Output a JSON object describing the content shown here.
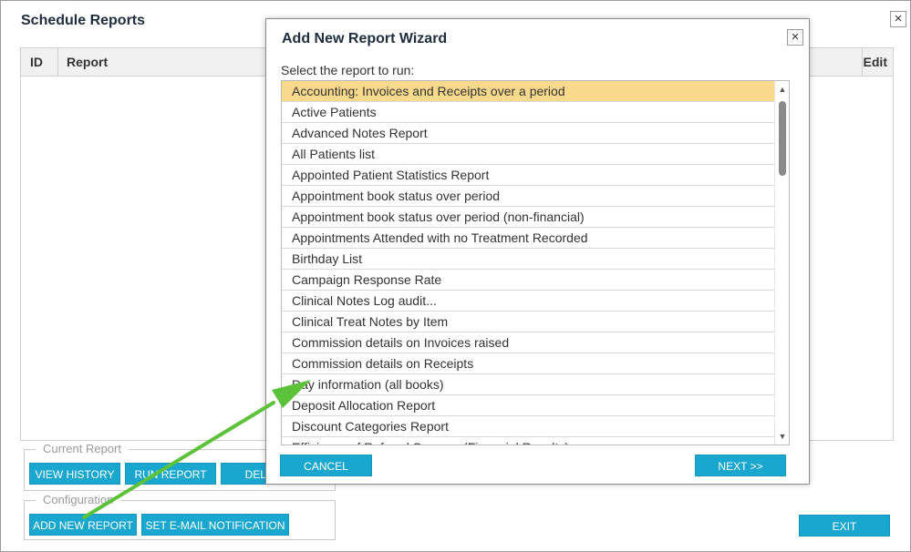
{
  "window": {
    "title": "Schedule Reports",
    "close_glyph": "×"
  },
  "grid": {
    "columns": {
      "id": "ID",
      "report": "Report",
      "edit": "Edit"
    }
  },
  "current_report": {
    "legend": "Current Report",
    "view_history": "VIEW HISTORY",
    "run_report": "RUN REPORT",
    "delete": "DELETE"
  },
  "configuration": {
    "legend": "Configuration",
    "add_new_report": "ADD NEW REPORT",
    "set_email_notification": "SET E-MAIL NOTIFICATION"
  },
  "exit_label": "EXIT",
  "wizard": {
    "title": "Add New Report Wizard",
    "close_glyph": "×",
    "prompt": "Select the report to run:",
    "selected_index": 0,
    "reports": [
      "Accounting: Invoices and Receipts over a period",
      "Active Patients",
      "Advanced Notes Report",
      "All Patients list",
      "Appointed Patient Statistics Report",
      "Appointment book status over period",
      "Appointment book status over period (non-financial)",
      "Appointments Attended with no Treatment Recorded",
      "Birthday List",
      "Campaign Response Rate",
      "Clinical Notes Log audit...",
      "Clinical Treat Notes by Item",
      "Commission details on Invoices raised",
      "Commission details on Receipts",
      "Day information (all books)",
      "Deposit Allocation Report",
      "Discount Categories Report",
      "Efficiency of Referral Sources (Financial Results)"
    ],
    "scroll_up_glyph": "▲",
    "scroll_down_glyph": "▼",
    "cancel_label": "CANCEL",
    "next_label": "NEXT >>"
  },
  "colors": {
    "button": "#1aa7cf",
    "selected_row": "#f9d98b",
    "arrow": "#5cc23a"
  }
}
